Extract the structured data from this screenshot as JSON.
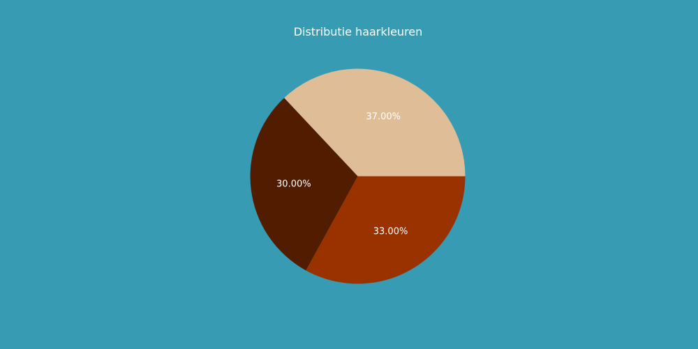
{
  "chart_data": {
    "type": "pie",
    "title": "Distributie haarkleuren",
    "slices": [
      {
        "value": 37,
        "label": "37.00%",
        "color": "#dfbe97"
      },
      {
        "value": 30,
        "label": "30.00%",
        "color": "#521c00"
      },
      {
        "value": 33,
        "label": "33.00%",
        "color": "#9a3200"
      }
    ],
    "background": "#379bb3",
    "text_color": "#ffffff"
  }
}
